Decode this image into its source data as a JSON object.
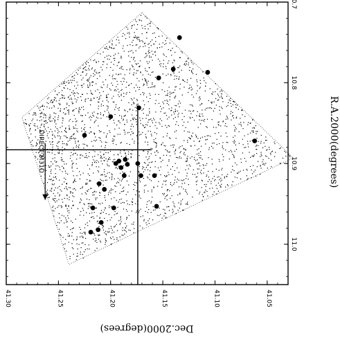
{
  "chart_data": {
    "type": "scatter",
    "title": "",
    "xlabel": "R.A.2000(degrees)",
    "ylabel": "Dec.2000(degrees)",
    "x_tick_labels": [
      "10.7",
      "10.8",
      "10.9",
      "11.0"
    ],
    "x_ticks": [
      10.7,
      10.8,
      10.9,
      11.0
    ],
    "y_tick_labels": [
      "41.30",
      "41.25",
      "41.20",
      "41.15",
      "41.10",
      "41.05"
    ],
    "y_ticks": [
      41.3,
      41.25,
      41.2,
      41.15,
      41.1,
      41.05
    ],
    "xlim": [
      10.7,
      11.05
    ],
    "ylim": [
      41.03,
      41.3
    ],
    "x_reversed": true,
    "grid": false,
    "field_corners": [
      [
        10.713,
        41.17
      ],
      [
        10.893,
        41.025
      ],
      [
        11.025,
        41.24
      ],
      [
        10.843,
        41.285
      ]
    ],
    "crosshair": {
      "ra": 10.883,
      "dec": 41.174
    },
    "annotations": [
      {
        "text": "DIRECT M31D",
        "ra": 10.885,
        "dec": 41.268,
        "arrow_to_ra": 10.945
      }
    ],
    "points": [
      {
        "ra": 10.744,
        "dec": 41.134,
        "label": ""
      },
      {
        "ra": 10.783,
        "dec": 41.14,
        "label": ""
      },
      {
        "ra": 10.787,
        "dec": 41.107,
        "label": ""
      },
      {
        "ra": 10.794,
        "dec": 41.154,
        "label": ""
      },
      {
        "ra": 10.831,
        "dec": 41.173,
        "label": ""
      },
      {
        "ra": 10.842,
        "dec": 41.2,
        "label": ""
      },
      {
        "ra": 10.865,
        "dec": 41.225,
        "label": ""
      },
      {
        "ra": 10.872,
        "dec": 41.062,
        "label": ""
      },
      {
        "ra": 10.895,
        "dec": 41.186,
        "label": ""
      },
      {
        "ra": 10.897,
        "dec": 41.192,
        "label": ""
      },
      {
        "ra": 10.901,
        "dec": 41.184,
        "label": ""
      },
      {
        "ra": 10.9,
        "dec": 41.195,
        "label": ""
      },
      {
        "ra": 10.905,
        "dec": 41.19,
        "label": ""
      },
      {
        "ra": 10.915,
        "dec": 41.187,
        "label": ""
      },
      {
        "ra": 10.925,
        "dec": 41.211,
        "label": ""
      },
      {
        "ra": 10.932,
        "dec": 41.206,
        "label": ""
      },
      {
        "ra": 10.915,
        "dec": 41.158,
        "label": ""
      },
      {
        "ra": 10.953,
        "dec": 41.156,
        "label": ""
      },
      {
        "ra": 10.955,
        "dec": 41.217,
        "label": ""
      },
      {
        "ra": 10.985,
        "dec": 41.219,
        "label": ""
      },
      {
        "ra": 10.982,
        "dec": 41.212,
        "label": ""
      },
      {
        "ra": 10.973,
        "dec": 41.209,
        "label": ""
      },
      {
        "ra": 10.955,
        "dec": 41.197,
        "label": ""
      },
      {
        "ra": 10.9,
        "dec": 41.174,
        "label": ""
      },
      {
        "ra": 10.915,
        "dec": 41.171,
        "label": ""
      }
    ],
    "n_background_stars": 2600
  }
}
